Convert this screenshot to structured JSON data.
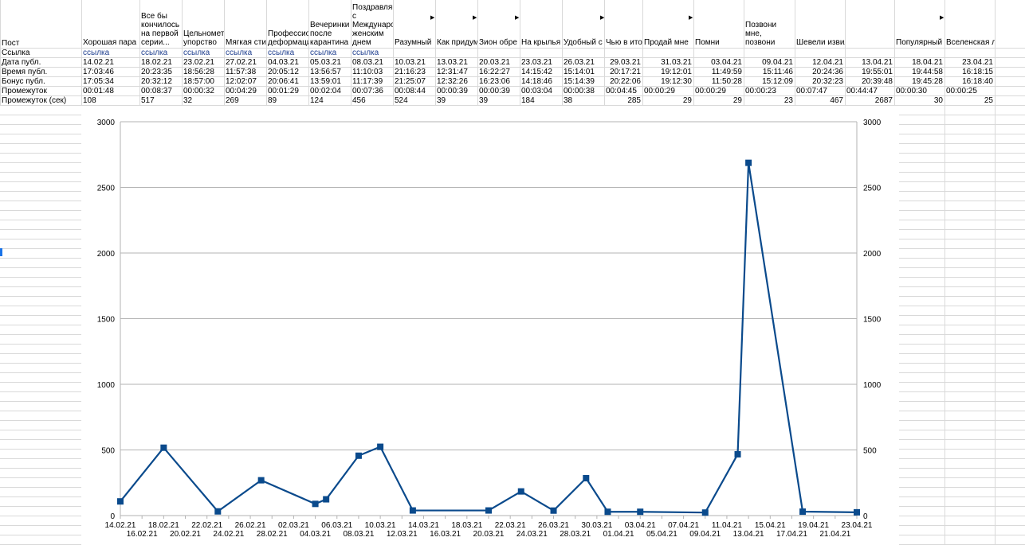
{
  "sheet": {
    "row_labels": {
      "post": "Пост",
      "link": "Ссылка",
      "date": "Дата публ.",
      "time": "Время публ.",
      "bonus": "Бонус публ.",
      "gap": "Промежуток",
      "gap_sec": "Промежуток (сек)"
    },
    "columns": [
      {
        "title": "Хорошая пара",
        "link": "ссылка",
        "date": "14.02.21",
        "time": "17:03:46",
        "bonus": "17:05:34",
        "gap": "00:01:48",
        "gap_sec": "108"
      },
      {
        "title": "Все бы кончилось на первой серии...",
        "link": "ссылка",
        "date": "18.02.21",
        "time": "20:23:35",
        "bonus": "20:32:12",
        "gap": "00:08:37",
        "gap_sec": "517"
      },
      {
        "title": "Цельнометаллическое упорство",
        "link": "ссылка",
        "date": "23.02.21",
        "time": "18:56:28",
        "bonus": "18:57:00",
        "gap": "00:00:32",
        "gap_sec": "32"
      },
      {
        "title": "Мягкая стирка",
        "link": "ссылка",
        "date": "27.02.21",
        "time": "11:57:38",
        "bonus": "12:02:07",
        "gap": "00:04:29",
        "gap_sec": "269"
      },
      {
        "title": "Профессиональная деформация",
        "link": "ссылка",
        "date": "04.03.21",
        "time": "20:05:12",
        "bonus": "20:06:41",
        "gap": "00:01:29",
        "gap_sec": "89"
      },
      {
        "title": "Вечеринки после карантина",
        "link": "ссылка",
        "date": "05.03.21",
        "time": "13:56:57",
        "bonus": "13:59:01",
        "gap": "00:02:04",
        "gap_sec": "124"
      },
      {
        "title": "Поздравляю с Международным женским днем",
        "link": "ссылка",
        "date": "08.03.21",
        "time": "11:10:03",
        "bonus": "11:17:39",
        "gap": "00:07:36",
        "gap_sec": "456"
      },
      {
        "title": "Разумный",
        "link": "",
        "date": "10.03.21",
        "time": "21:16:23",
        "bonus": "21:25:07",
        "gap": "00:08:44",
        "gap_sec": "524"
      },
      {
        "title": "Как придум",
        "link": "",
        "date": "13.03.21",
        "time": "12:31:47",
        "bonus": "12:32:26",
        "gap": "00:00:39",
        "gap_sec": "39"
      },
      {
        "title": "Зион обре",
        "link": "",
        "date": "20.03.21",
        "time": "16:22:27",
        "bonus": "16:23:06",
        "gap": "00:00:39",
        "gap_sec": "39"
      },
      {
        "title": "На крылья",
        "link": "",
        "date": "23.03.21",
        "time": "14:15:42",
        "bonus": "14:18:46",
        "gap": "00:03:04",
        "gap_sec": "184"
      },
      {
        "title": "Удобный с",
        "link": "",
        "date": "26.03.21",
        "time": "15:14:01",
        "bonus": "15:14:39",
        "gap": "00:00:38",
        "gap_sec": "38"
      },
      {
        "title": "Чью в ито",
        "link": "",
        "date": "29.03.21",
        "time": "20:17:21",
        "bonus": "20:22:06",
        "gap": "00:04:45",
        "gap_sec": "285"
      },
      {
        "title": "Продай мне",
        "link": "",
        "date": "31.03.21",
        "time": "19:12:01",
        "bonus": "19:12:30",
        "gap": "00:00:29",
        "gap_sec": "29"
      },
      {
        "title": "Помни",
        "link": "",
        "date": "03.04.21",
        "time": "11:49:59",
        "bonus": "11:50:28",
        "gap": "00:00:29",
        "gap_sec": "29"
      },
      {
        "title": "Позвони мне, позвони",
        "link": "",
        "date": "09.04.21",
        "time": "15:11:46",
        "bonus": "15:12:09",
        "gap": "00:00:23",
        "gap_sec": "23"
      },
      {
        "title": "Шевели извилинами",
        "link": "",
        "date": "12.04.21",
        "time": "20:24:36",
        "bonus": "20:32:23",
        "gap": "00:07:47",
        "gap_sec": "467"
      },
      {
        "title": "",
        "link": "",
        "date": "13.04.21",
        "time": "19:55:01",
        "bonus": "20:39:48",
        "gap": "00:44:47",
        "gap_sec": "2687"
      },
      {
        "title": "Популярный",
        "link": "",
        "date": "18.04.21",
        "time": "19:44:58",
        "bonus": "19:45:28",
        "gap": "00:00:30",
        "gap_sec": "30"
      },
      {
        "title": "Вселенская любовь",
        "link": "",
        "date": "23.04.21",
        "time": "16:18:15",
        "bonus": "16:18:40",
        "gap": "00:00:25",
        "gap_sec": "25"
      }
    ]
  },
  "chart_data": {
    "type": "line",
    "title": "",
    "xlabel": "",
    "ylabel": "",
    "x_tick_labels": [
      "14.02.21",
      "16.02.21",
      "18.02.21",
      "20.02.21",
      "22.02.21",
      "24.02.21",
      "26.02.21",
      "28.02.21",
      "02.03.21",
      "04.03.21",
      "06.03.21",
      "08.03.21",
      "10.03.21",
      "12.03.21",
      "14.03.21",
      "16.03.21",
      "18.03.21",
      "20.03.21",
      "22.03.21",
      "24.03.21",
      "26.03.21",
      "28.03.21",
      "30.03.21",
      "01.04.21",
      "03.04.21",
      "05.04.21",
      "07.04.21",
      "09.04.21",
      "11.04.21",
      "13.04.21",
      "15.04.21",
      "17.04.21",
      "19.04.21",
      "21.04.21",
      "23.04.21"
    ],
    "x_range": [
      "14.02.21",
      "23.04.21"
    ],
    "ylim": [
      0,
      3000
    ],
    "y_ticks": [
      0,
      500,
      1000,
      1500,
      2000,
      2500,
      3000
    ],
    "secondary_y_axis": true,
    "grid": "horizontal",
    "series": [
      {
        "color": "#0a4a8c",
        "marker": "square",
        "points": [
          {
            "x": "14.02.21",
            "y": 108
          },
          {
            "x": "18.02.21",
            "y": 517
          },
          {
            "x": "23.02.21",
            "y": 32
          },
          {
            "x": "27.02.21",
            "y": 269
          },
          {
            "x": "04.03.21",
            "y": 89
          },
          {
            "x": "05.03.21",
            "y": 124
          },
          {
            "x": "08.03.21",
            "y": 456
          },
          {
            "x": "10.03.21",
            "y": 524
          },
          {
            "x": "13.03.21",
            "y": 39
          },
          {
            "x": "20.03.21",
            "y": 39
          },
          {
            "x": "23.03.21",
            "y": 184
          },
          {
            "x": "26.03.21",
            "y": 38
          },
          {
            "x": "29.03.21",
            "y": 285
          },
          {
            "x": "31.03.21",
            "y": 29
          },
          {
            "x": "03.04.21",
            "y": 29
          },
          {
            "x": "09.04.21",
            "y": 23
          },
          {
            "x": "12.04.21",
            "y": 467
          },
          {
            "x": "13.04.21",
            "y": 2687
          },
          {
            "x": "18.04.21",
            "y": 30
          },
          {
            "x": "23.04.21",
            "y": 25
          }
        ]
      }
    ]
  }
}
